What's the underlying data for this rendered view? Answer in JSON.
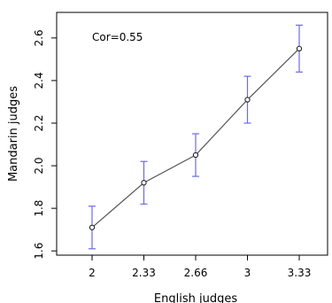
{
  "chart_data": {
    "type": "line",
    "title": "",
    "xlabel": "English judges",
    "ylabel": "Mandarin judges",
    "annotation": "Cor=0.55",
    "x_tick_labels": [
      "2",
      "2.33",
      "2.66",
      "3",
      "3.33"
    ],
    "y_tick_labels": [
      "1.6",
      "1.8",
      "2.0",
      "2.2",
      "2.4",
      "2.6"
    ],
    "y_ticks": [
      1.6,
      1.8,
      2.0,
      2.2,
      2.4,
      2.6
    ],
    "ylim": [
      1.58,
      2.72
    ],
    "grid": false,
    "series": [
      {
        "x": [
          2,
          2.33,
          2.66,
          3,
          3.33
        ],
        "y": [
          1.71,
          1.92,
          2.05,
          2.31,
          2.55
        ],
        "error_low": [
          1.61,
          1.82,
          1.95,
          2.2,
          2.44
        ],
        "error_high": [
          1.81,
          2.02,
          2.15,
          2.42,
          2.66
        ]
      }
    ],
    "colors": {
      "line": "#555555",
      "points": "#222222",
      "error_bars": "#6b6bea"
    }
  }
}
